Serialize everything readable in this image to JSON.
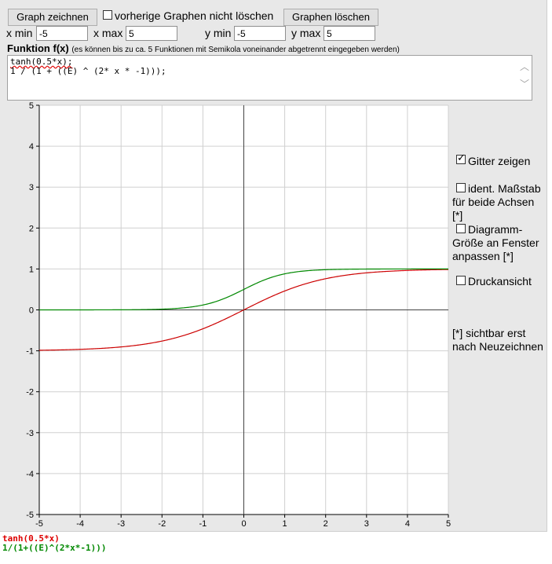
{
  "toolbar": {
    "draw_label": "Graph zeichnen",
    "keep_label": "vorherige Graphen nicht löschen",
    "clear_label": "Graphen löschen"
  },
  "range": {
    "xmin_label": "x min",
    "xmin": "-5",
    "xmax_label": "x max",
    "xmax": "5",
    "ymin_label": "y min",
    "ymin": "-5",
    "ymax_label": "y max",
    "ymax": "5"
  },
  "function": {
    "title": "Funktion f(x)",
    "hint": "(es können bis zu ca. 5 Funktionen mit Semikola voneinander abgetrennt eingegeben werden)",
    "lines": [
      "tanh(0.5*x);",
      "1 / (1 + ((E) ^ (2* x * -1)));"
    ]
  },
  "options": {
    "grid": {
      "label": "Gitter zeigen",
      "checked": true
    },
    "same_scale": {
      "label_line1": "ident. Maßstab",
      "label_line2": "für beide Achsen [*]",
      "checked": false
    },
    "fit_size": {
      "label_line1": "Diagramm-",
      "label_line2": "Größe an Fenster",
      "label_line3": "anpassen [*]",
      "checked": false
    },
    "print": {
      "label": "Druckansicht",
      "checked": false
    },
    "note_line1": "[*] sichtbar erst",
    "note_line2": "nach Neuzeichnen"
  },
  "chart_data": {
    "type": "line",
    "xlim": [
      -5,
      5
    ],
    "ylim": [
      -5,
      5
    ],
    "grid": true,
    "x_ticks": [
      "-5",
      "-4",
      "-3",
      "-2",
      "-1",
      "0",
      "1",
      "2",
      "3",
      "4",
      "5"
    ],
    "y_ticks": [
      "5",
      "4",
      "3",
      "2",
      "1",
      "0",
      "-1",
      "-2",
      "-3",
      "-4",
      "-5"
    ],
    "series": [
      {
        "name": "tanh(0.5*x)",
        "color": "#cc0000",
        "expr": "tanh"
      },
      {
        "name": "1/(1+((E)^(2*x*-1)))",
        "color": "#008800",
        "expr": "sigmoid2x"
      }
    ]
  },
  "legend": {
    "items": [
      {
        "text": "tanh(0.5*x)",
        "color": "#dd0000"
      },
      {
        "text": "1/(1+((E)^(2*x*-1)))",
        "color": "#008800"
      }
    ]
  },
  "colors": {
    "grid": "#d0d0d0",
    "axis": "#000000"
  }
}
